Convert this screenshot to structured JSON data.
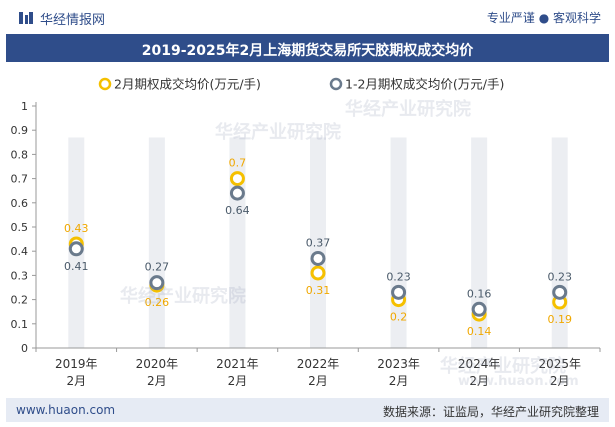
{
  "header": {
    "brand": "华经情报网",
    "slogan": "专业严谨 ● 客观科学"
  },
  "title": "2019-2025年2月上海期货交易所天胶期权成交均价",
  "footer": {
    "website": "www.huaon.com",
    "source": "数据来源：证监局，华经产业研究院整理"
  },
  "watermark": {
    "text": "华经产业研究院",
    "url": "www.huaon.com"
  },
  "colors": {
    "series1": "#f5c000",
    "series2": "#6a7a8c",
    "bar": "#eceef2",
    "header": "#2f4d8a",
    "label1": "#f0a800",
    "label2": "#4a5a6a"
  },
  "chart_data": {
    "type": "scatter",
    "categories": [
      [
        "2019年",
        "2月"
      ],
      [
        "2020年",
        "2月"
      ],
      [
        "2021年",
        "2月"
      ],
      [
        "2022年",
        "2月"
      ],
      [
        "2023年",
        "2月"
      ],
      [
        "2024年",
        "2月"
      ],
      [
        "2025年",
        "2月"
      ]
    ],
    "series": [
      {
        "name": "2月期权成交均价(万元/手)",
        "values": [
          0.43,
          0.26,
          0.7,
          0.31,
          0.2,
          0.14,
          0.19
        ]
      },
      {
        "name": "1-2月期权成交均价(万元/手)",
        "values": [
          0.41,
          0.27,
          0.64,
          0.37,
          0.23,
          0.16,
          0.23
        ]
      }
    ],
    "yticks": [
      "0",
      "0.1",
      "0.2",
      "0.3",
      "0.4",
      "0.5",
      "0.6",
      "0.7",
      "0.8",
      "0.9",
      "1"
    ],
    "ylim": [
      0,
      1
    ],
    "legend": "top-center",
    "grid": false
  }
}
